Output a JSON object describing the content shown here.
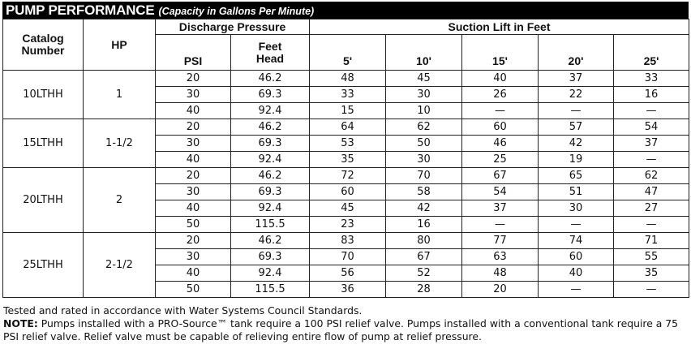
{
  "title": {
    "main": "PUMP PERFORMANCE",
    "sub": "(Capacity in Gallons Per Minute)"
  },
  "headers": {
    "catalog": "Catalog Number",
    "catalog_line1": "Catalog",
    "catalog_line2": "Number",
    "hp": "HP",
    "discharge_pressure": "Discharge Pressure",
    "psi": "PSI",
    "feet_head": "Feet Head",
    "feet_head_line1": "Feet",
    "feet_head_line2": "Head",
    "suction_lift": "Suction Lift in Feet",
    "lift_columns": [
      "5'",
      "10'",
      "15'",
      "20'",
      "25'"
    ]
  },
  "groups": [
    {
      "catalog": "10LTHH",
      "hp": "1",
      "rows": [
        {
          "psi": "20",
          "feet_head": "46.2",
          "lift": [
            "48",
            "45",
            "40",
            "37",
            "33"
          ]
        },
        {
          "psi": "30",
          "feet_head": "69.3",
          "lift": [
            "33",
            "30",
            "26",
            "22",
            "16"
          ]
        },
        {
          "psi": "40",
          "feet_head": "92.4",
          "lift": [
            "15",
            "10",
            "—",
            "—",
            "—"
          ]
        }
      ]
    },
    {
      "catalog": "15LTHH",
      "hp": "1-1/2",
      "rows": [
        {
          "psi": "20",
          "feet_head": "46.2",
          "lift": [
            "64",
            "62",
            "60",
            "57",
            "54"
          ]
        },
        {
          "psi": "30",
          "feet_head": "69.3",
          "lift": [
            "53",
            "50",
            "46",
            "42",
            "37"
          ]
        },
        {
          "psi": "40",
          "feet_head": "92.4",
          "lift": [
            "35",
            "30",
            "25",
            "19",
            "—"
          ]
        }
      ]
    },
    {
      "catalog": "20LTHH",
      "hp": "2",
      "rows": [
        {
          "psi": "20",
          "feet_head": "46.2",
          "lift": [
            "72",
            "70",
            "67",
            "65",
            "62"
          ]
        },
        {
          "psi": "30",
          "feet_head": "69.3",
          "lift": [
            "60",
            "58",
            "54",
            "51",
            "47"
          ]
        },
        {
          "psi": "40",
          "feet_head": "92.4",
          "lift": [
            "45",
            "42",
            "37",
            "30",
            "27"
          ]
        },
        {
          "psi": "50",
          "feet_head": "115.5",
          "lift": [
            "23",
            "16",
            "—",
            "—",
            "—"
          ]
        }
      ]
    },
    {
      "catalog": "25LTHH",
      "hp": "2-1/2",
      "rows": [
        {
          "psi": "20",
          "feet_head": "46.2",
          "lift": [
            "83",
            "80",
            "77",
            "74",
            "71"
          ]
        },
        {
          "psi": "30",
          "feet_head": "69.3",
          "lift": [
            "70",
            "67",
            "63",
            "60",
            "55"
          ]
        },
        {
          "psi": "40",
          "feet_head": "92.4",
          "lift": [
            "56",
            "52",
            "48",
            "40",
            "35"
          ]
        },
        {
          "psi": "50",
          "feet_head": "115.5",
          "lift": [
            "36",
            "28",
            "20",
            "—",
            "—"
          ]
        }
      ]
    }
  ],
  "notes": {
    "tested": "Tested and rated in accordance with Water Systems Council Standards.",
    "note_label": "NOTE:",
    "note_text": "Pumps installed with a PRO-Source™ tank require a 100 PSI relief valve. Pumps installed with a conventional tank require a 75 PSI relief valve. Relief valve must be capable of relieving entire flow of pump at relief pressure."
  }
}
